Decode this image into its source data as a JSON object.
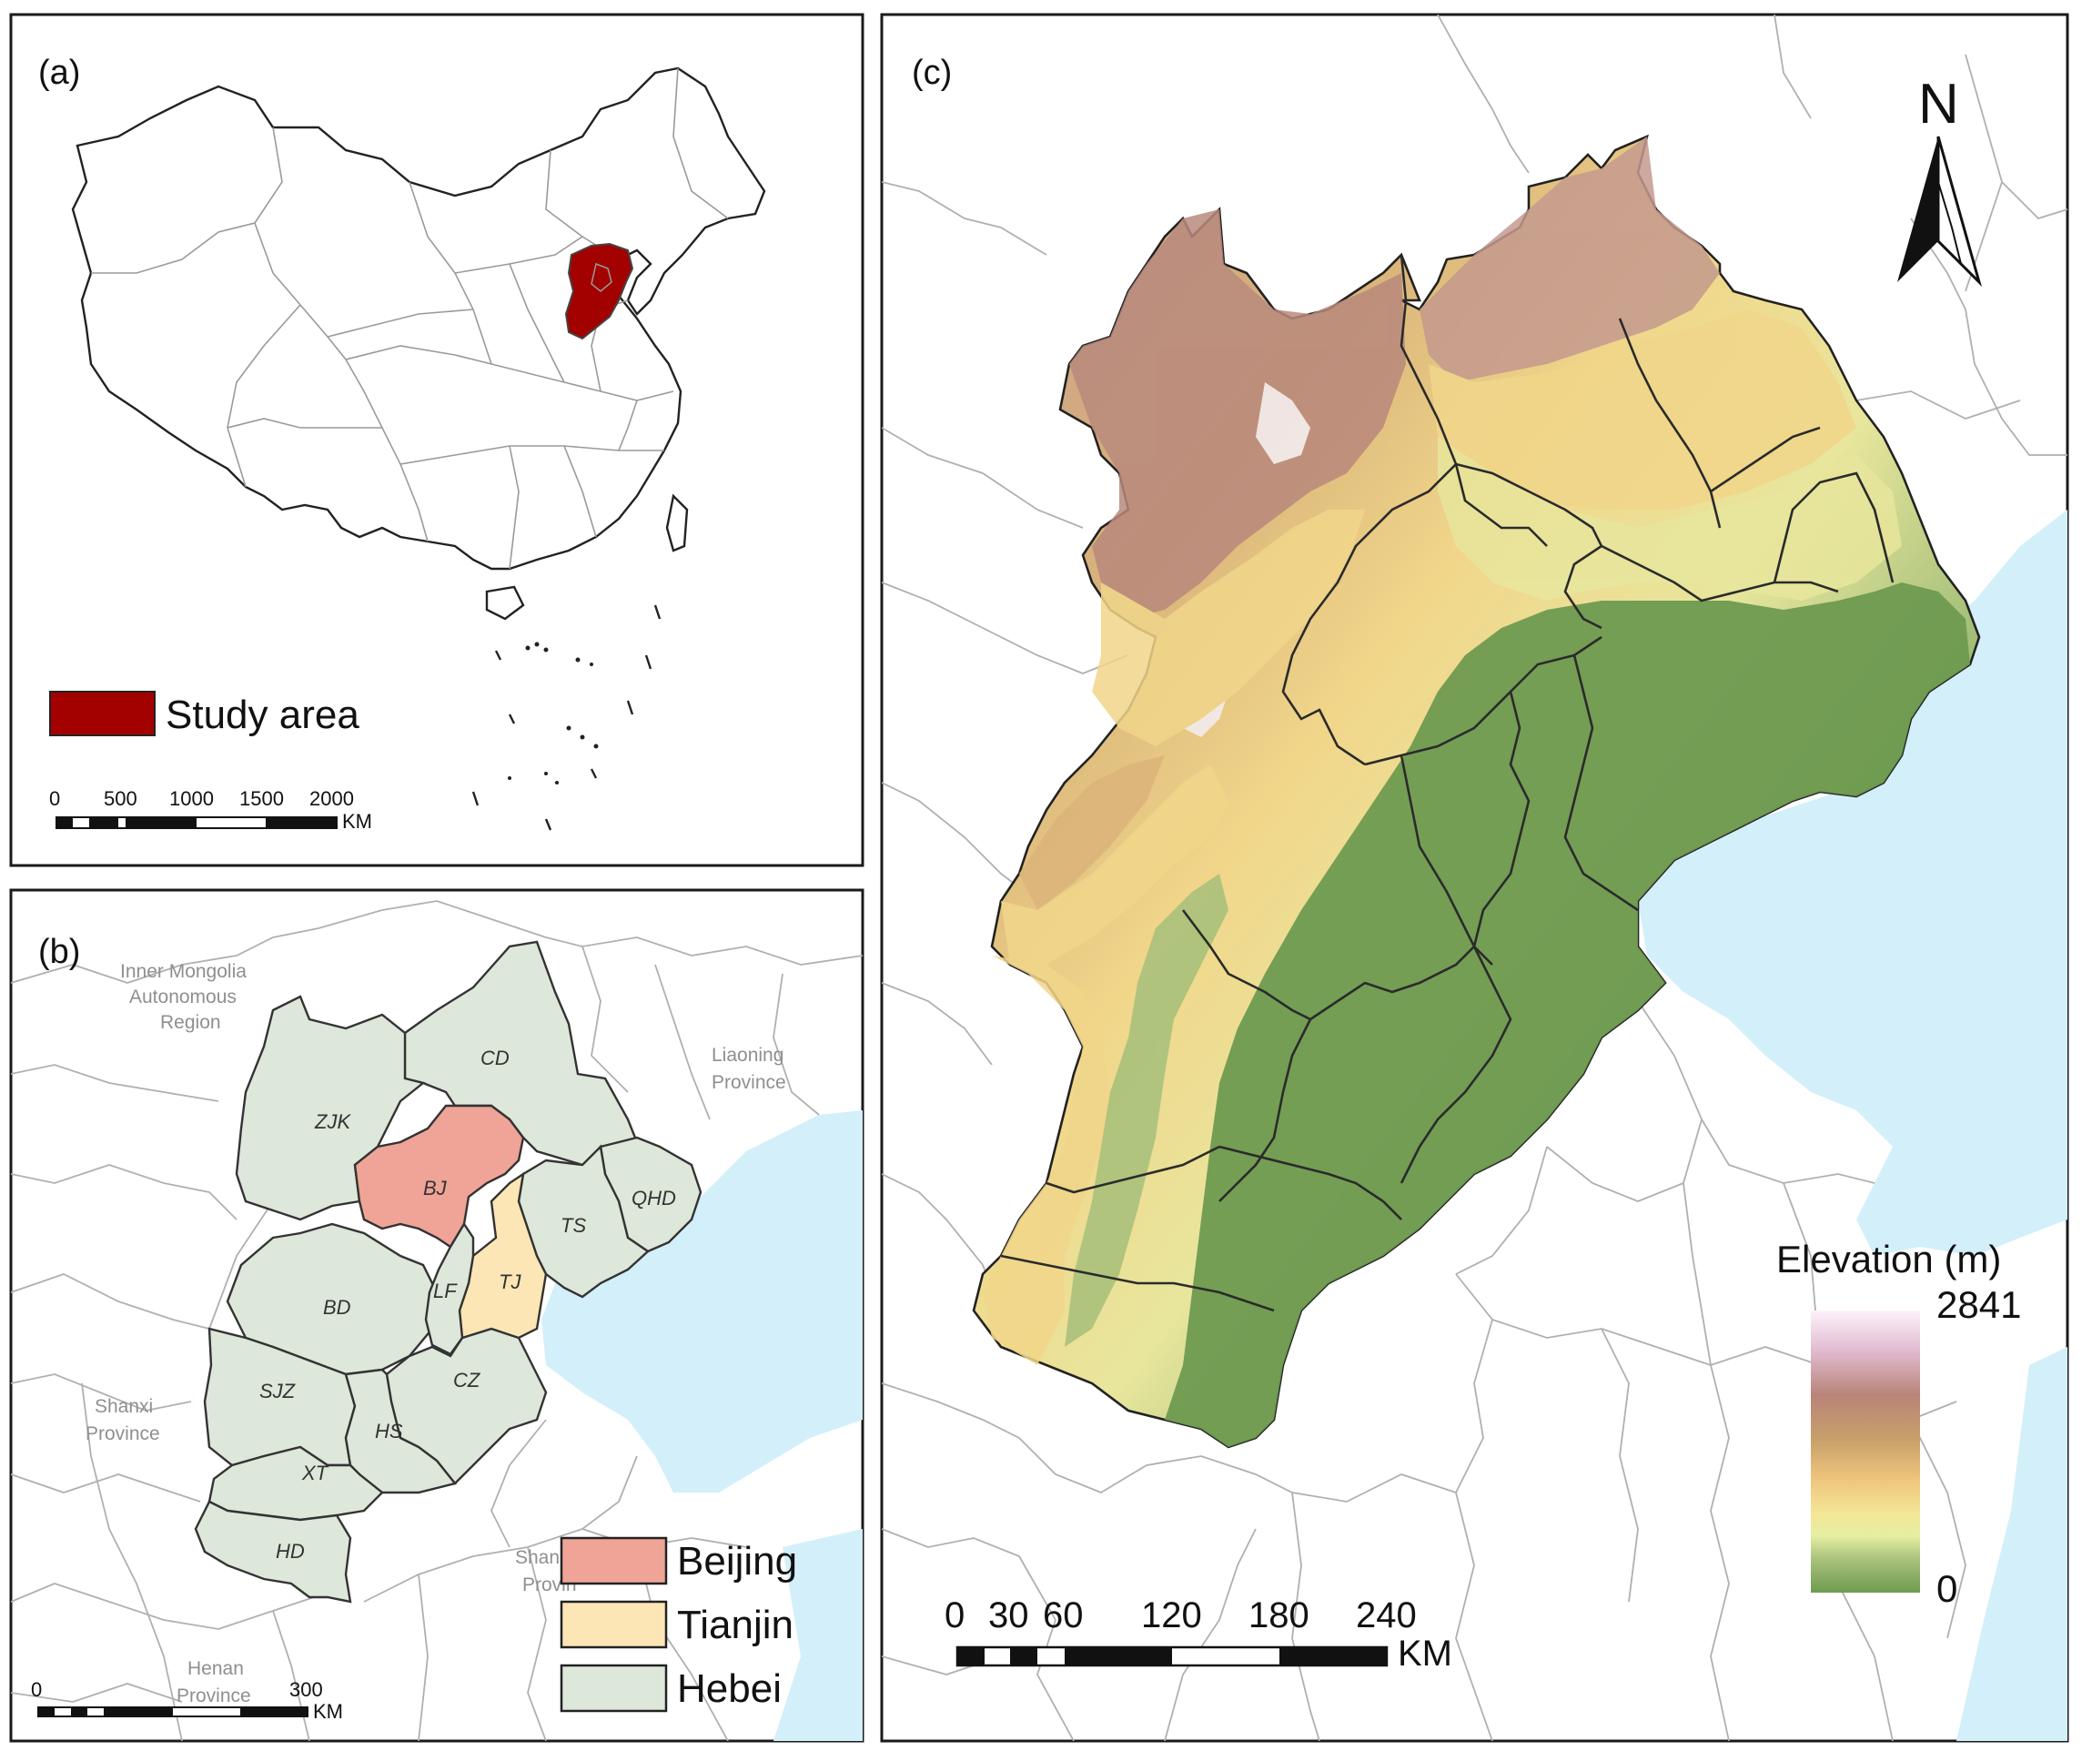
{
  "panel_a": {
    "label": "(a)",
    "legend": {
      "label": "Study area",
      "color": "#a30000"
    },
    "scale": {
      "ticks": [
        "0",
        "500",
        "1000",
        "1500",
        "2000"
      ],
      "unit": "KM"
    }
  },
  "panel_b": {
    "label": "(b)",
    "cities": [
      "CD",
      "ZJK",
      "BJ",
      "QHD",
      "TS",
      "TJ",
      "LF",
      "BD",
      "SJZ",
      "CZ",
      "HS",
      "XT",
      "HD"
    ],
    "neighbor_labels": {
      "inner_mongolia": [
        "Inner Mongolia",
        "Autonomous",
        "Region"
      ],
      "liaoning": [
        "Liaoning",
        "Province"
      ],
      "shanxi": [
        "Shanxi",
        "Province"
      ],
      "shandong": [
        "Shan",
        "Provin"
      ],
      "henan": [
        "Henan",
        "Province"
      ]
    },
    "legend": [
      {
        "label": "Beijing",
        "color": "#efa497"
      },
      {
        "label": "Tianjin",
        "color": "#fde6b5"
      },
      {
        "label": "Hebei",
        "color": "#dde7da"
      }
    ],
    "scale": {
      "ticks": [
        "0",
        "300"
      ],
      "unit": "KM"
    }
  },
  "panel_c": {
    "label": "(c)",
    "north": "N",
    "elevation_legend": {
      "title": "Elevation (m)",
      "max": "2841",
      "min": "0",
      "colors": [
        "#fdf2fb",
        "#e8c3d8",
        "#b88478",
        "#c8a06a",
        "#efc57d",
        "#f3e797",
        "#e4eea0",
        "#a9c27c",
        "#6f9b4f"
      ]
    },
    "scale": {
      "ticks": [
        "0",
        "30",
        "60",
        "120",
        "180",
        "240"
      ],
      "unit": "KM"
    }
  }
}
